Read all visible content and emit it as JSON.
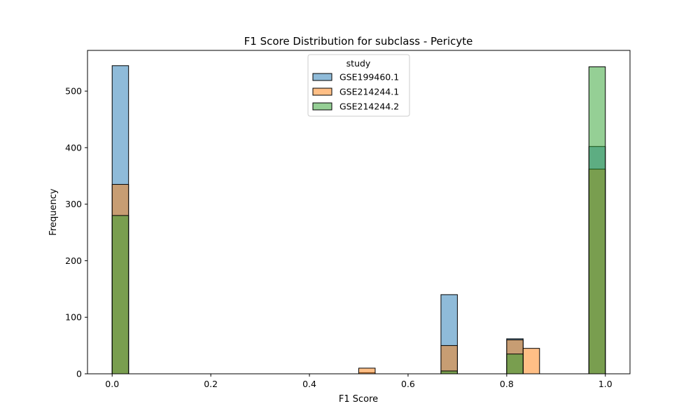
{
  "chart_data": {
    "type": "bar",
    "title": "F1 Score Distribution for subclass - Pericyte",
    "xlabel": "F1 Score",
    "ylabel": "Frequency",
    "xlim": [
      -0.05,
      1.05
    ],
    "ylim": [
      0,
      572
    ],
    "xticks": [
      "0.0",
      "0.2",
      "0.4",
      "0.6",
      "0.8",
      "1.0"
    ],
    "xtick_values": [
      0.0,
      0.2,
      0.4,
      0.6,
      0.8,
      1.0
    ],
    "yticks": [
      "0",
      "100",
      "200",
      "300",
      "400",
      "500"
    ],
    "ytick_values": [
      0,
      100,
      200,
      300,
      400,
      500
    ],
    "bin_width": 0.0333,
    "legend": {
      "title": "study",
      "placement": "top-center"
    },
    "series": [
      {
        "name": "GSE199460.1",
        "color": "#1f77b4",
        "bins": [
          {
            "x0": 0.0,
            "value": 545
          },
          {
            "x0": 0.5,
            "value": 2
          },
          {
            "x0": 0.6667,
            "value": 140
          },
          {
            "x0": 0.8,
            "value": 62
          },
          {
            "x0": 0.9667,
            "value": 402
          }
        ]
      },
      {
        "name": "GSE214244.1",
        "color": "#ff7f0e",
        "bins": [
          {
            "x0": 0.0,
            "value": 335
          },
          {
            "x0": 0.5,
            "value": 10
          },
          {
            "x0": 0.6667,
            "value": 50
          },
          {
            "x0": 0.8,
            "value": 60
          },
          {
            "x0": 0.8333,
            "value": 45
          },
          {
            "x0": 0.9667,
            "value": 362
          }
        ]
      },
      {
        "name": "GSE214244.2",
        "color": "#2ca02c",
        "bins": [
          {
            "x0": 0.0,
            "value": 280
          },
          {
            "x0": 0.6667,
            "value": 5
          },
          {
            "x0": 0.8,
            "value": 35
          },
          {
            "x0": 0.9667,
            "value": 543
          }
        ]
      }
    ]
  }
}
